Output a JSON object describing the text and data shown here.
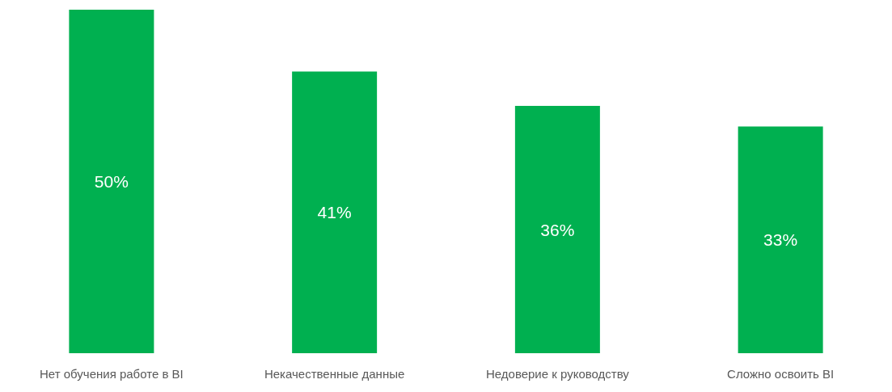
{
  "chart_data": {
    "type": "bar",
    "categories": [
      "Нет обучения работе в BI",
      "Некачественные данные",
      "Недоверие к руководству",
      "Сложно освоить BI"
    ],
    "values": [
      50,
      41,
      36,
      33
    ],
    "value_labels": [
      "50%",
      "41%",
      "36%",
      "33%"
    ],
    "color": "#00b050"
  }
}
